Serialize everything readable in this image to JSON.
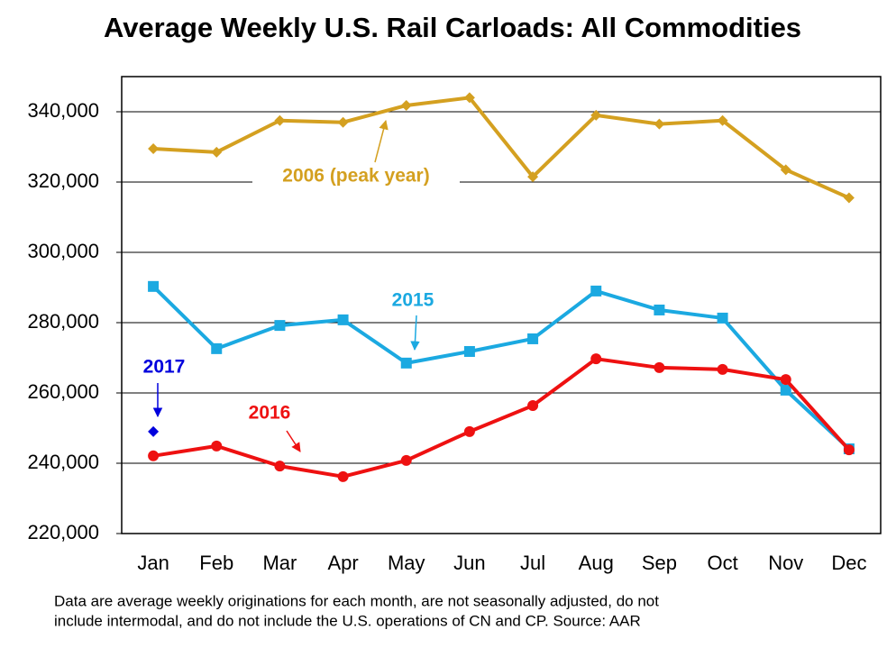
{
  "chart_data": {
    "type": "line",
    "title": "Average Weekly U.S. Rail Carloads: All Commodities",
    "categories": [
      "Jan",
      "Feb",
      "Mar",
      "Apr",
      "May",
      "Jun",
      "Jul",
      "Aug",
      "Sep",
      "Oct",
      "Nov",
      "Dec"
    ],
    "series": [
      {
        "name": "2006 (peak year)",
        "color": "#d4a020",
        "marker": "diamond",
        "values": [
          329500,
          328500,
          337500,
          337000,
          341800,
          344000,
          321500,
          339000,
          336500,
          337500,
          323500,
          315500
        ]
      },
      {
        "name": "2015",
        "color": "#1ba9e1",
        "marker": "square",
        "values": [
          290300,
          272600,
          279200,
          280800,
          268500,
          271800,
          275400,
          289000,
          283600,
          281300,
          260800,
          244100
        ]
      },
      {
        "name": "2016",
        "color": "#ee1111",
        "marker": "circle",
        "values": [
          242100,
          244900,
          239200,
          236200,
          240800,
          249000,
          256400,
          269700,
          267200,
          266700,
          263800,
          243800
        ]
      },
      {
        "name": "2017",
        "color": "#0000dd",
        "marker": "diamond",
        "values": [
          249000,
          null,
          null,
          null,
          null,
          null,
          null,
          null,
          null,
          null,
          null,
          null
        ]
      }
    ],
    "ylim": [
      220000,
      350000
    ],
    "yticks": [
      {
        "value": 220000,
        "label": "220,000"
      },
      {
        "value": 240000,
        "label": "240,000"
      },
      {
        "value": 260000,
        "label": "260,000"
      },
      {
        "value": 280000,
        "label": "280,000"
      },
      {
        "value": 300000,
        "label": "300,000"
      },
      {
        "value": 320000,
        "label": "320,000"
      },
      {
        "value": 340000,
        "label": "340,000"
      }
    ],
    "grid": true,
    "footnote": [
      "Data are average weekly originations for each month, are not seasonally adjusted, do not",
      "include intermodal, and do not include the U.S. operations of CN and CP.   Source: AAR"
    ]
  }
}
